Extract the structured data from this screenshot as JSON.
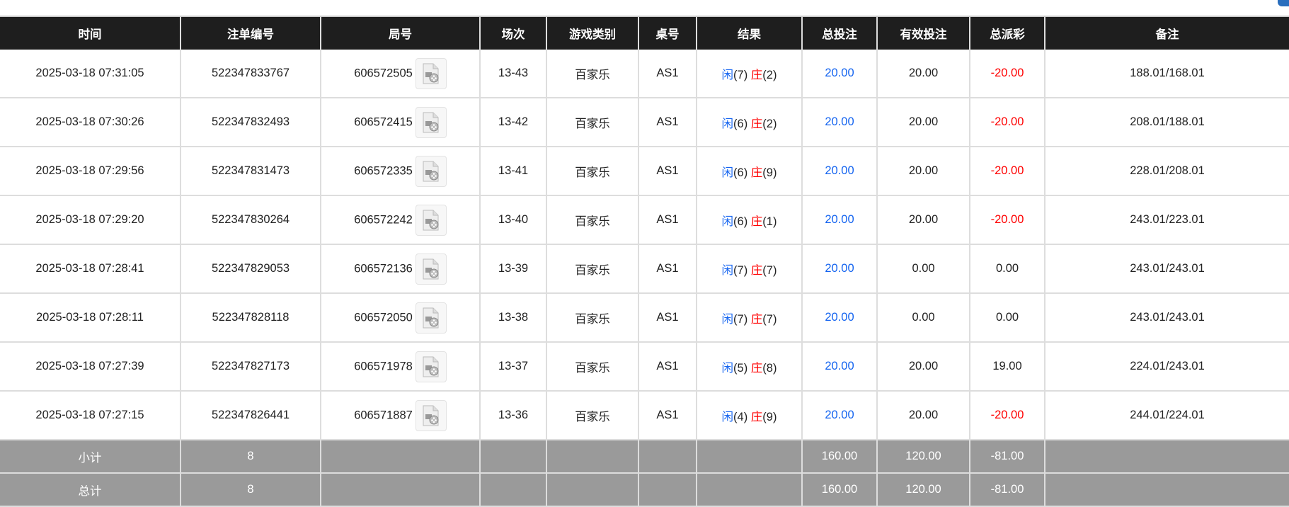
{
  "headers": [
    "时间",
    "注单编号",
    "局号",
    "场次",
    "游戏类别",
    "桌号",
    "结果",
    "总投注",
    "有效投注",
    "总派彩",
    "备注"
  ],
  "rows": [
    {
      "time": "2025-03-18 07:31:05",
      "bet_id": "522347833767",
      "round": "606572505",
      "shoe": "13-43",
      "game": "百家乐",
      "table": "AS1",
      "player_label": "闲",
      "player": "(7)",
      "banker_label": "庄",
      "banker": "(2)",
      "total": "20.00",
      "valid": "20.00",
      "payout": "-20.00",
      "payout_neg": true,
      "note": "188.01/168.01"
    },
    {
      "time": "2025-03-18 07:30:26",
      "bet_id": "522347832493",
      "round": "606572415",
      "shoe": "13-42",
      "game": "百家乐",
      "table": "AS1",
      "player_label": "闲",
      "player": "(6)",
      "banker_label": "庄",
      "banker": "(2)",
      "total": "20.00",
      "valid": "20.00",
      "payout": "-20.00",
      "payout_neg": true,
      "note": "208.01/188.01"
    },
    {
      "time": "2025-03-18 07:29:56",
      "bet_id": "522347831473",
      "round": "606572335",
      "shoe": "13-41",
      "game": "百家乐",
      "table": "AS1",
      "player_label": "闲",
      "player": "(6)",
      "banker_label": "庄",
      "banker": "(9)",
      "total": "20.00",
      "valid": "20.00",
      "payout": "-20.00",
      "payout_neg": true,
      "note": "228.01/208.01"
    },
    {
      "time": "2025-03-18 07:29:20",
      "bet_id": "522347830264",
      "round": "606572242",
      "shoe": "13-40",
      "game": "百家乐",
      "table": "AS1",
      "player_label": "闲",
      "player": "(6)",
      "banker_label": "庄",
      "banker": "(1)",
      "total": "20.00",
      "valid": "20.00",
      "payout": "-20.00",
      "payout_neg": true,
      "note": "243.01/223.01"
    },
    {
      "time": "2025-03-18 07:28:41",
      "bet_id": "522347829053",
      "round": "606572136",
      "shoe": "13-39",
      "game": "百家乐",
      "table": "AS1",
      "player_label": "闲",
      "player": "(7)",
      "banker_label": "庄",
      "banker": "(7)",
      "total": "20.00",
      "valid": "0.00",
      "payout": "0.00",
      "payout_neg": false,
      "note": "243.01/243.01"
    },
    {
      "time": "2025-03-18 07:28:11",
      "bet_id": "522347828118",
      "round": "606572050",
      "shoe": "13-38",
      "game": "百家乐",
      "table": "AS1",
      "player_label": "闲",
      "player": "(7)",
      "banker_label": "庄",
      "banker": "(7)",
      "total": "20.00",
      "valid": "0.00",
      "payout": "0.00",
      "payout_neg": false,
      "note": "243.01/243.01"
    },
    {
      "time": "2025-03-18 07:27:39",
      "bet_id": "522347827173",
      "round": "606571978",
      "shoe": "13-37",
      "game": "百家乐",
      "table": "AS1",
      "player_label": "闲",
      "player": "(5)",
      "banker_label": "庄",
      "banker": "(8)",
      "total": "20.00",
      "valid": "20.00",
      "payout": "19.00",
      "payout_neg": false,
      "note": "224.01/243.01"
    },
    {
      "time": "2025-03-18 07:27:15",
      "bet_id": "522347826441",
      "round": "606571887",
      "shoe": "13-36",
      "game": "百家乐",
      "table": "AS1",
      "player_label": "闲",
      "player": "(4)",
      "banker_label": "庄",
      "banker": "(9)",
      "total": "20.00",
      "valid": "20.00",
      "payout": "-20.00",
      "payout_neg": true,
      "note": "244.01/224.01"
    }
  ],
  "subtotal": {
    "label": "小计",
    "count": "8",
    "total": "160.00",
    "valid": "120.00",
    "payout": "-81.00"
  },
  "grandtotal": {
    "label": "总计",
    "count": "8",
    "total": "160.00",
    "valid": "120.00",
    "payout": "-81.00"
  },
  "colors": {
    "header_bg": "#1e1e1e",
    "summary_bg": "#9a9a9a",
    "blue": "#1464f0",
    "red": "#ff0000"
  },
  "icons": {
    "replay": "video-file-icon"
  }
}
